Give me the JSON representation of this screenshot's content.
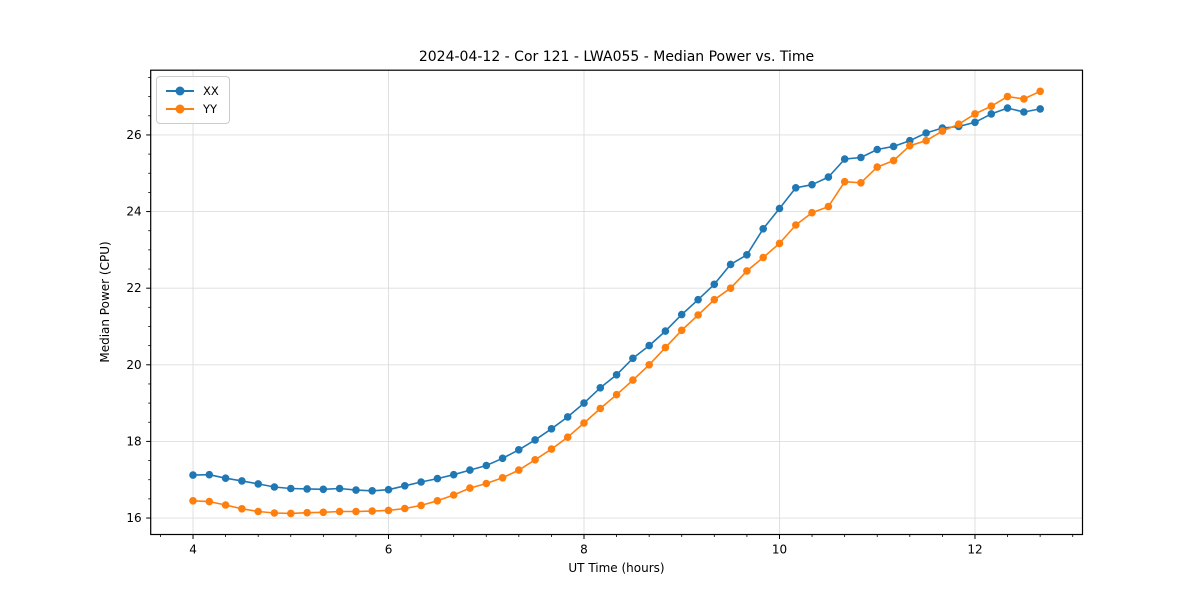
{
  "title": "2024-04-12 - Cor 121 - LWA055 - Median Power vs. Time",
  "chart_data": {
    "type": "line",
    "title": "2024-04-12 - Cor 121 - LWA055 - Median Power vs. Time",
    "xlabel": "UT Time (hours)",
    "ylabel": "Median Power (CPU)",
    "xlim": [
      3.567,
      13.1
    ],
    "ylim": [
      15.57,
      27.69
    ],
    "xticks": [
      4,
      6,
      8,
      10,
      12
    ],
    "yticks": [
      16,
      18,
      20,
      22,
      24,
      26
    ],
    "x_minor_step": 0.33333,
    "y_minor_step": 0.5,
    "grid": true,
    "legend_position": "upper left",
    "marker": "circle",
    "x": [
      4.0,
      4.167,
      4.333,
      4.5,
      4.667,
      4.833,
      5.0,
      5.167,
      5.333,
      5.5,
      5.667,
      5.833,
      6.0,
      6.167,
      6.333,
      6.5,
      6.667,
      6.833,
      7.0,
      7.167,
      7.333,
      7.5,
      7.667,
      7.833,
      8.0,
      8.167,
      8.333,
      8.5,
      8.667,
      8.833,
      9.0,
      9.167,
      9.333,
      9.5,
      9.667,
      9.833,
      10.0,
      10.167,
      10.333,
      10.5,
      10.667,
      10.833,
      11.0,
      11.167,
      11.333,
      11.5,
      11.667,
      11.833,
      12.0,
      12.167,
      12.333,
      12.5,
      12.667
    ],
    "series": [
      {
        "name": "XX",
        "color": "#1f77b4",
        "values": [
          17.12,
          17.13,
          17.04,
          16.97,
          16.89,
          16.81,
          16.77,
          16.76,
          16.75,
          16.77,
          16.73,
          16.71,
          16.74,
          16.84,
          16.94,
          17.03,
          17.13,
          17.25,
          17.37,
          17.56,
          17.78,
          18.04,
          18.33,
          18.64,
          19.0,
          19.4,
          19.74,
          20.17,
          20.5,
          20.88,
          21.31,
          21.7,
          22.1,
          22.62,
          22.87,
          23.55,
          24.08,
          24.62,
          24.7,
          24.9,
          25.37,
          25.41,
          25.62,
          25.7,
          25.85,
          26.05,
          26.18,
          26.22,
          26.33,
          26.55,
          26.7,
          26.6,
          26.68
        ]
      },
      {
        "name": "YY",
        "color": "#ff7f0e",
        "values": [
          16.45,
          16.43,
          16.34,
          16.24,
          16.17,
          16.13,
          16.12,
          16.14,
          16.15,
          16.17,
          16.17,
          16.18,
          16.2,
          16.25,
          16.33,
          16.45,
          16.6,
          16.78,
          16.9,
          17.05,
          17.25,
          17.52,
          17.8,
          18.11,
          18.48,
          18.86,
          19.22,
          19.6,
          20.0,
          20.45,
          20.9,
          21.3,
          21.7,
          22.0,
          22.45,
          22.8,
          23.17,
          23.65,
          23.97,
          24.13,
          24.78,
          24.75,
          25.16,
          25.33,
          25.72,
          25.85,
          26.1,
          26.28,
          26.55,
          26.75,
          27.0,
          26.94,
          27.14
        ]
      }
    ],
    "colors": {
      "grid": "#dddddd",
      "spine": "#000000",
      "tick": "#000000",
      "background": "#ffffff"
    }
  }
}
